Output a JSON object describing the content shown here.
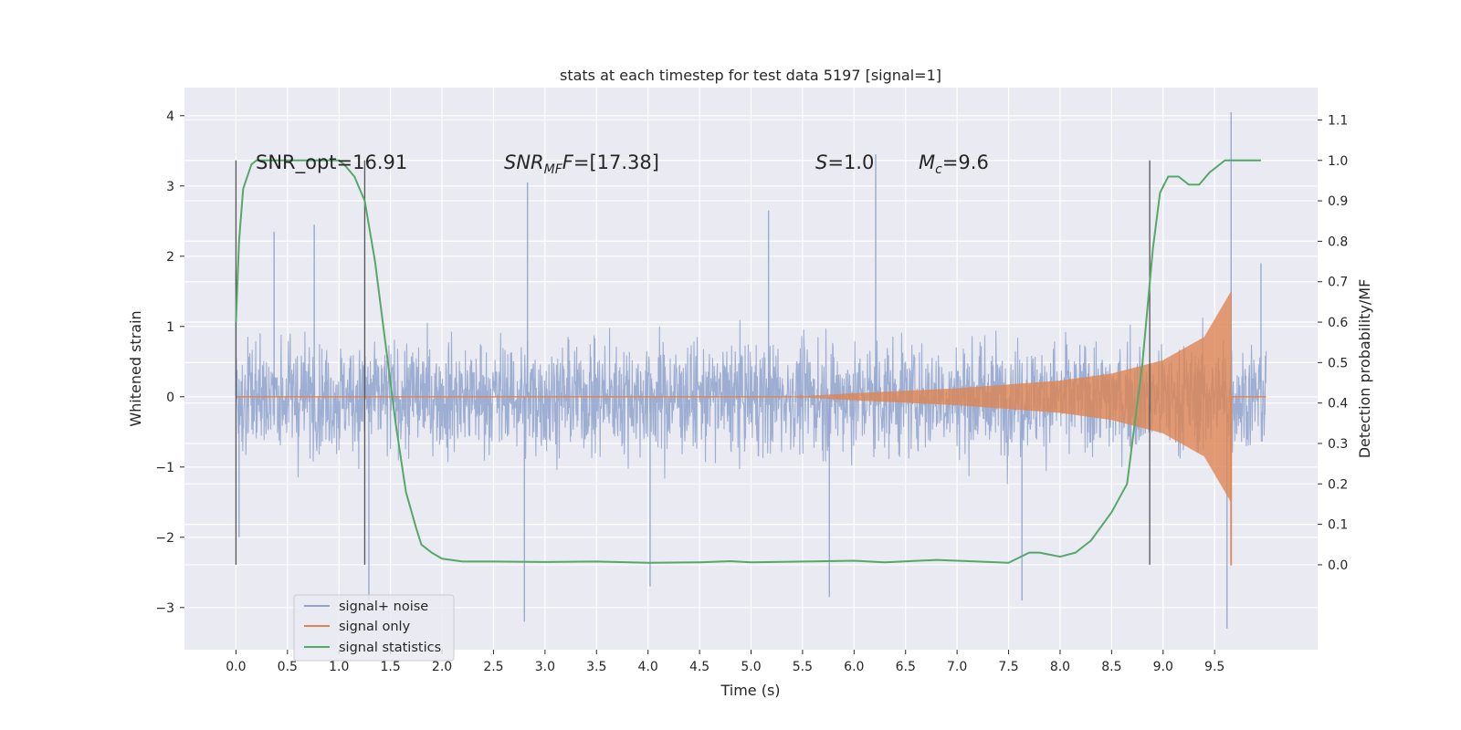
{
  "chart_data": {
    "type": "line",
    "title": "stats at each timestep for test data 5197 [signal=1]",
    "xlabel": "Time (s)",
    "ylabel": "Whitened strain",
    "y2label": "Detection probability/MF",
    "xlim": [
      -0.5,
      10.5
    ],
    "ylim": [
      -3.6,
      4.4
    ],
    "y2lim": [
      -0.21,
      1.18
    ],
    "x_ticks": [
      "0.0",
      "0.5",
      "1.0",
      "1.5",
      "2.0",
      "2.5",
      "3.0",
      "3.5",
      "4.0",
      "4.5",
      "5.0",
      "5.5",
      "6.0",
      "6.5",
      "7.0",
      "7.5",
      "8.0",
      "8.5",
      "9.0",
      "9.5"
    ],
    "y_ticks": [
      "4",
      "3",
      "2",
      "1",
      "0",
      "−1",
      "−2",
      "−3"
    ],
    "y2_ticks": [
      "1.1",
      "1.0",
      "0.9",
      "0.8",
      "0.7",
      "0.6",
      "0.5",
      "0.4",
      "0.3",
      "0.2",
      "0.1",
      "0.0"
    ],
    "grid": true,
    "legend_position": "lower-left",
    "annotations": {
      "snr_opt": "SNR_opt=16.91",
      "snr_mf_main": "SNR",
      "snr_mf_sub": "MF",
      "snr_mf_value": "=[17.38]",
      "s_sym": "S",
      "s_value": "=1.0",
      "mc_main": "M",
      "mc_sub": "c",
      "mc_value": "=9.6"
    },
    "vertical_lines_x": [
      0.0,
      1.25,
      8.87
    ],
    "series": [
      {
        "name": "signal+ noise",
        "color": "#8fa3cd",
        "kind": "noise",
        "x_range": [
          0.0,
          10.0
        ],
        "typical_envelope": [
          -1.3,
          1.6
        ],
        "peaks": [
          {
            "x": 0.0,
            "y": 1.8
          },
          {
            "x": 0.03,
            "y": -2.0
          },
          {
            "x": 0.37,
            "y": 2.35
          },
          {
            "x": 0.76,
            "y": 2.45
          },
          {
            "x": 1.29,
            "y": -2.9
          },
          {
            "x": 2.83,
            "y": 3.05
          },
          {
            "x": 2.8,
            "y": -3.2
          },
          {
            "x": 4.02,
            "y": -2.7
          },
          {
            "x": 5.17,
            "y": 2.65
          },
          {
            "x": 5.76,
            "y": -2.85
          },
          {
            "x": 6.21,
            "y": 3.45
          },
          {
            "x": 7.63,
            "y": -2.9
          },
          {
            "x": 9.66,
            "y": 4.05
          },
          {
            "x": 9.62,
            "y": -3.3
          },
          {
            "x": 9.95,
            "y": 1.9
          }
        ]
      },
      {
        "name": "signal only",
        "color": "#dd8452",
        "kind": "chirp",
        "start_x": 5.4,
        "merger_x": 9.66,
        "amplitude_points": [
          {
            "x": 5.4,
            "y": 0.0
          },
          {
            "x": 6.0,
            "y": 0.05
          },
          {
            "x": 7.0,
            "y": 0.12
          },
          {
            "x": 8.0,
            "y": 0.23
          },
          {
            "x": 8.5,
            "y": 0.33
          },
          {
            "x": 9.0,
            "y": 0.52
          },
          {
            "x": 9.4,
            "y": 0.85
          },
          {
            "x": 9.6,
            "y": 1.35
          },
          {
            "x": 9.66,
            "y": 1.5
          }
        ],
        "min_after_merger": -2.4
      },
      {
        "name": "signal statistics",
        "color": "#55a868",
        "kind": "line",
        "x": [
          0.0,
          0.03,
          0.07,
          0.15,
          0.2,
          0.3,
          0.5,
          0.7,
          0.9,
          1.0,
          1.05,
          1.15,
          1.25,
          1.35,
          1.45,
          1.55,
          1.65,
          1.75,
          1.8,
          1.9,
          2.0,
          2.2,
          2.5,
          3.0,
          3.5,
          4.0,
          4.5,
          4.8,
          5.0,
          5.5,
          6.0,
          6.3,
          6.8,
          7.2,
          7.5,
          7.7,
          7.8,
          8.0,
          8.15,
          8.3,
          8.5,
          8.65,
          8.7,
          8.8,
          8.9,
          8.97,
          9.05,
          9.15,
          9.25,
          9.35,
          9.45,
          9.6,
          9.75,
          9.95
        ],
        "y": [
          0.6,
          0.8,
          0.93,
          0.99,
          1.0,
          1.0,
          1.0,
          1.0,
          1.0,
          1.0,
          0.99,
          0.96,
          0.9,
          0.75,
          0.55,
          0.35,
          0.18,
          0.09,
          0.05,
          0.03,
          0.015,
          0.008,
          0.008,
          0.007,
          0.008,
          0.005,
          0.006,
          0.009,
          0.006,
          0.008,
          0.01,
          0.006,
          0.012,
          0.008,
          0.005,
          0.03,
          0.03,
          0.02,
          0.03,
          0.06,
          0.13,
          0.2,
          0.3,
          0.5,
          0.78,
          0.92,
          0.96,
          0.96,
          0.94,
          0.94,
          0.97,
          1.0,
          1.0,
          1.0
        ]
      }
    ]
  }
}
